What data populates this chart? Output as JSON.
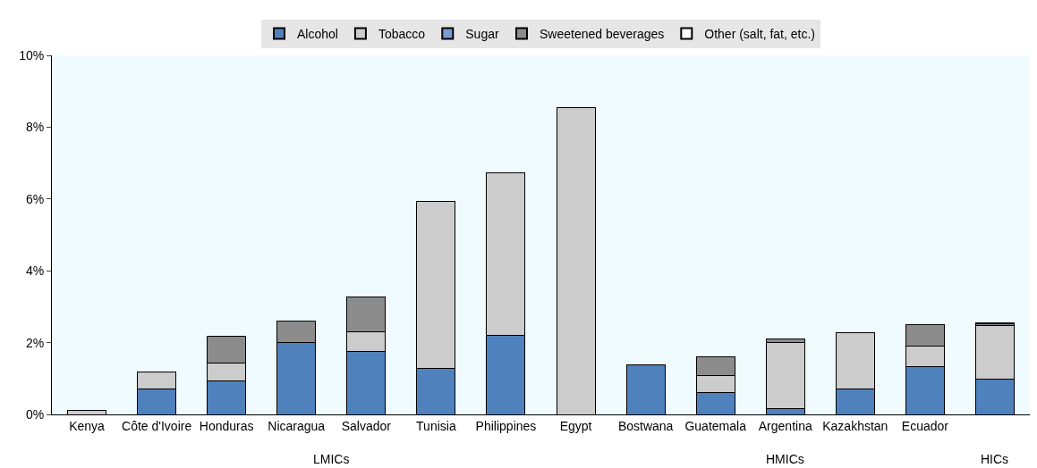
{
  "chart_data": {
    "type": "bar",
    "stacked": true,
    "legend": "top",
    "grid": false,
    "categories": [
      "Kenya",
      "Côte d'Ivoire",
      "Honduras",
      "Nicaragua",
      "Salvador",
      "Tunisia",
      "Philippines",
      "Egypt",
      "Bostwana",
      "Guatemala",
      "Argentina",
      "Kazakhstan",
      "Ecuador",
      null
    ],
    "series": [
      {
        "name": "Alcohol",
        "color": "#4f81bd",
        "values": [
          null,
          0.7,
          0.93,
          2.0,
          1.76,
          1.28,
          2.19,
          null,
          1.38,
          0.6,
          0.15,
          0.7,
          1.33,
          0.98
        ]
      },
      {
        "name": "Tobacco",
        "color": "#cccccc",
        "values": [
          0.1,
          0.48,
          0.5,
          null,
          0.53,
          4.66,
          4.54,
          8.54,
          null,
          0.48,
          1.85,
          1.57,
          0.58,
          1.49
        ]
      },
      {
        "name": "Sugar",
        "color": "#7a9bd0",
        "values": [
          null,
          null,
          null,
          null,
          null,
          null,
          null,
          null,
          null,
          null,
          null,
          null,
          null,
          null
        ]
      },
      {
        "name": "Sweetened beverages",
        "color": "#8c8c8c",
        "values": [
          null,
          null,
          0.74,
          0.6,
          0.98,
          null,
          null,
          null,
          null,
          0.53,
          0.1,
          null,
          0.58,
          0.05
        ]
      },
      {
        "name": "Other (salt, fat, etc.)",
        "color": "#ffffff",
        "values": [
          null,
          null,
          null,
          null,
          null,
          null,
          null,
          null,
          null,
          null,
          null,
          null,
          null,
          0.03
        ]
      }
    ],
    "ylim": [
      0,
      10
    ],
    "yticks": [
      {
        "value": 0,
        "label": "0%"
      },
      {
        "value": 2,
        "label": "2%"
      },
      {
        "value": 4,
        "label": "4%"
      },
      {
        "value": 6,
        "label": "6%"
      },
      {
        "value": 8,
        "label": "8%"
      },
      {
        "value": 10,
        "label": "10%"
      }
    ],
    "annotations": [
      "LMICs",
      "HMICs",
      "HICs"
    ]
  }
}
